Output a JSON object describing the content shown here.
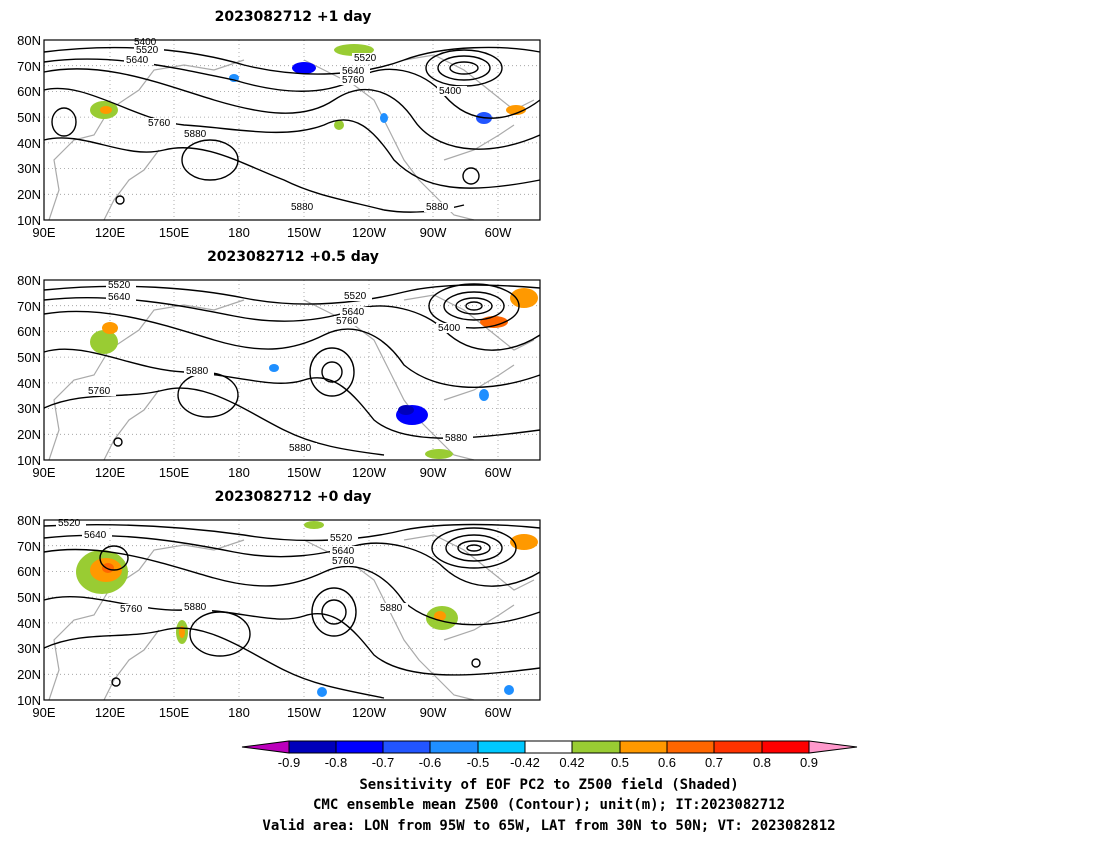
{
  "panels": [
    {
      "id": "p1",
      "title": "2023082712  +1  day",
      "contour_labels": [
        "5400",
        "5520",
        "5640",
        "5760",
        "5880",
        "5520",
        "5640",
        "5760",
        "5400",
        "5880",
        "5880"
      ]
    },
    {
      "id": "p2",
      "title": "2023082712  +0.5  day",
      "contour_labels": [
        "5520",
        "5640",
        "5760",
        "5880",
        "5520",
        "5640",
        "5760",
        "5400",
        "5880",
        "5880"
      ]
    },
    {
      "id": "p3",
      "title": "2023082712  +0  day",
      "contour_labels": [
        "5520",
        "5640",
        "5760",
        "5880",
        "5520",
        "5640",
        "5760",
        "5880"
      ]
    }
  ],
  "axes": {
    "lat_labels": [
      "80N",
      "70N",
      "60N",
      "50N",
      "40N",
      "30N",
      "20N",
      "10N"
    ],
    "lon_labels": [
      "90E",
      "120E",
      "150E",
      "180",
      "150W",
      "120W",
      "90W",
      "60W"
    ]
  },
  "colorbar": {
    "ticks": [
      "-0.9",
      "-0.8",
      "-0.7",
      "-0.6",
      "-0.5",
      "-0.42",
      "0.42",
      "0.5",
      "0.6",
      "0.7",
      "0.8",
      "0.9"
    ],
    "colors": [
      "#bb00bb",
      "#0000bb",
      "#0000ff",
      "#2255ff",
      "#1f8fff",
      "#00c8ff",
      "#ffffff",
      "#99cc33",
      "#ff9900",
      "#ff6600",
      "#ff3300",
      "#ff0000",
      "#ff99cc"
    ]
  },
  "caption": {
    "line1": "Sensitivity of EOF PC2 to Z500 field (Shaded)",
    "line2": "CMC ensemble mean Z500 (Contour); unit(m); IT:2023082712",
    "line3": "Valid area: LON from 95W to 65W, LAT from 30N to 50N; VT: 2023082812"
  }
}
